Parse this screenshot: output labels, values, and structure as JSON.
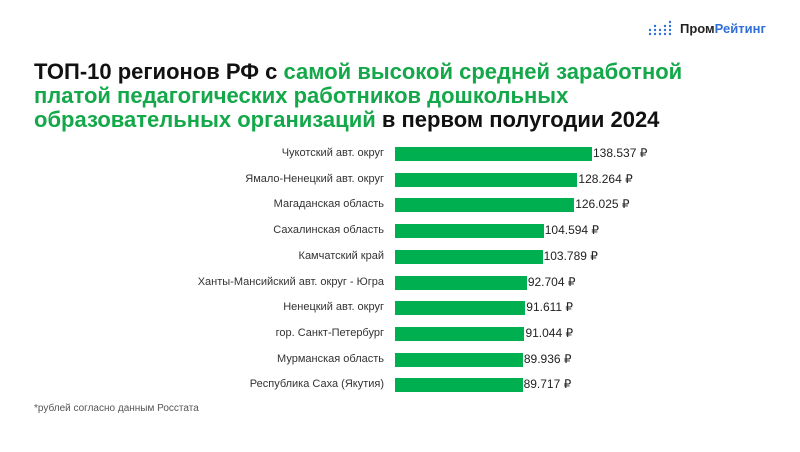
{
  "logo": {
    "part1": "Пром",
    "part2": "Рейтинг"
  },
  "title": {
    "part1": "ТОП-10 регионов РФ с ",
    "part2": "самой высокой средней заработной платой педагогических работников дошкольных образовательных организаций",
    "part3": " в первом полугодии 2024"
  },
  "footnote": "*рублей согласно данным Росстата",
  "chart_data": {
    "type": "bar",
    "orientation": "horizontal",
    "bar_color": "#00b050",
    "unit": "₽",
    "categories": [
      "Чукотский авт. округ",
      "Ямало-Ненецкий авт. округ",
      "Магаданская область",
      "Сахалинская область",
      "Камчатский край",
      "Ханты-Мансийский авт. округ - Югра",
      "Ненецкий авт. округ",
      "гор. Санкт-Петербург",
      "Мурманская область",
      "Республика Саха (Якутия)"
    ],
    "values": [
      138537,
      128264,
      126025,
      104594,
      103789,
      92704,
      91611,
      91044,
      89936,
      89717
    ],
    "value_labels": [
      "138.537 ₽",
      "128.264 ₽",
      "126.025 ₽",
      "104.594 ₽",
      "103.789 ₽",
      "92.704 ₽",
      "91.611 ₽",
      "91.044 ₽",
      "89.936 ₽",
      "89.717 ₽"
    ]
  }
}
